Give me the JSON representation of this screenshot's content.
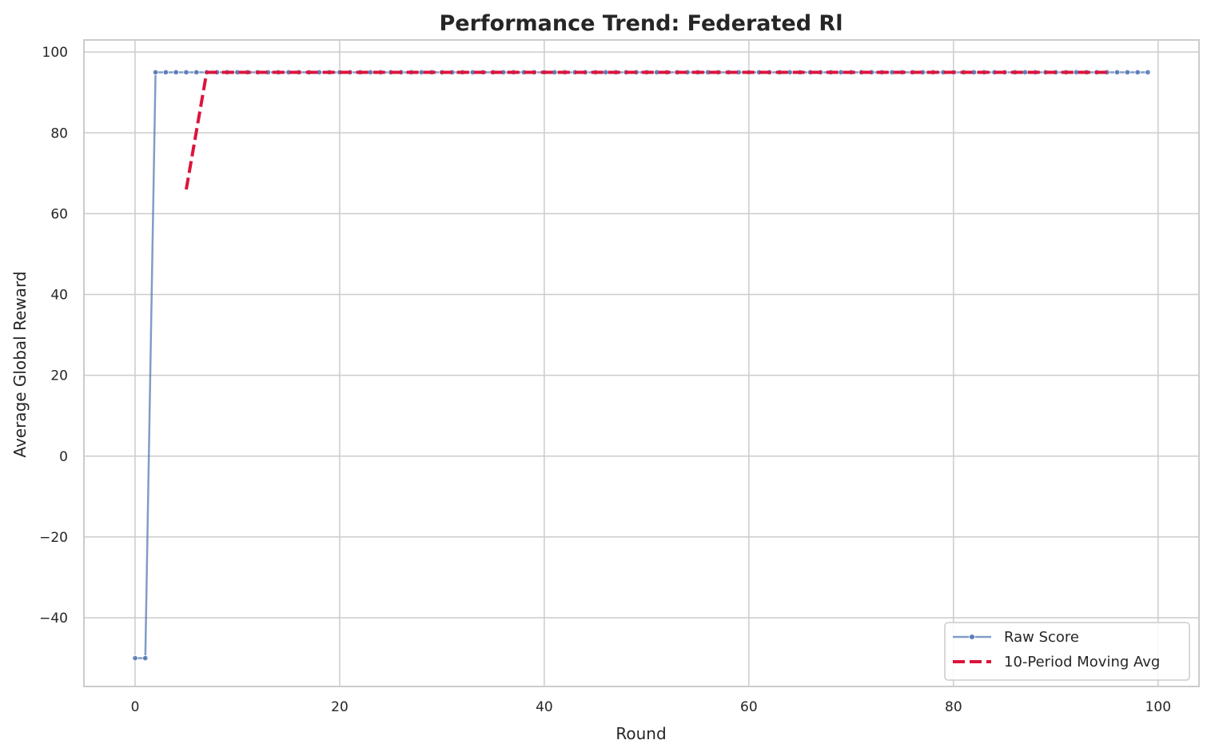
{
  "chart_data": {
    "type": "line",
    "title": "Performance Trend: Federated Rl",
    "xlabel": "Round",
    "ylabel": "Average Global Reward",
    "xlim": [
      -5,
      104
    ],
    "ylim": [
      -57,
      103
    ],
    "xticks": [
      0,
      20,
      40,
      60,
      80,
      100
    ],
    "yticks": [
      -40,
      -20,
      0,
      20,
      40,
      60,
      80,
      100
    ],
    "xtick_labels": [
      "0",
      "20",
      "40",
      "60",
      "80",
      "100"
    ],
    "ytick_labels": [
      "−40",
      "−20",
      "0",
      "20",
      "40",
      "60",
      "80",
      "100"
    ],
    "grid": true,
    "legend_position": "lower-right",
    "series": [
      {
        "name": "Raw Score",
        "color": "#4c72b0",
        "style": "solid-with-dot-markers",
        "points": [
          [
            0,
            -50
          ],
          [
            1,
            -50
          ],
          [
            2,
            95
          ],
          [
            3,
            95
          ],
          [
            4,
            95
          ],
          [
            5,
            95
          ],
          [
            6,
            95
          ],
          [
            7,
            95
          ],
          [
            8,
            95
          ],
          [
            9,
            95
          ],
          [
            10,
            95
          ],
          [
            11,
            95
          ],
          [
            12,
            95
          ],
          [
            13,
            95
          ],
          [
            14,
            95
          ],
          [
            15,
            95
          ],
          [
            16,
            95
          ],
          [
            17,
            95
          ],
          [
            18,
            95
          ],
          [
            19,
            95
          ],
          [
            20,
            95
          ],
          [
            21,
            95
          ],
          [
            22,
            95
          ],
          [
            23,
            95
          ],
          [
            24,
            95
          ],
          [
            25,
            95
          ],
          [
            26,
            95
          ],
          [
            27,
            95
          ],
          [
            28,
            95
          ],
          [
            29,
            95
          ],
          [
            30,
            95
          ],
          [
            31,
            95
          ],
          [
            32,
            95
          ],
          [
            33,
            95
          ],
          [
            34,
            95
          ],
          [
            35,
            95
          ],
          [
            36,
            95
          ],
          [
            37,
            95
          ],
          [
            38,
            95
          ],
          [
            39,
            95
          ],
          [
            40,
            95
          ],
          [
            41,
            95
          ],
          [
            42,
            95
          ],
          [
            43,
            95
          ],
          [
            44,
            95
          ],
          [
            45,
            95
          ],
          [
            46,
            95
          ],
          [
            47,
            95
          ],
          [
            48,
            95
          ],
          [
            49,
            95
          ],
          [
            50,
            95
          ],
          [
            51,
            95
          ],
          [
            52,
            95
          ],
          [
            53,
            95
          ],
          [
            54,
            95
          ],
          [
            55,
            95
          ],
          [
            56,
            95
          ],
          [
            57,
            95
          ],
          [
            58,
            95
          ],
          [
            59,
            95
          ],
          [
            60,
            95
          ],
          [
            61,
            95
          ],
          [
            62,
            95
          ],
          [
            63,
            95
          ],
          [
            64,
            95
          ],
          [
            65,
            95
          ],
          [
            66,
            95
          ],
          [
            67,
            95
          ],
          [
            68,
            95
          ],
          [
            69,
            95
          ],
          [
            70,
            95
          ],
          [
            71,
            95
          ],
          [
            72,
            95
          ],
          [
            73,
            95
          ],
          [
            74,
            95
          ],
          [
            75,
            95
          ],
          [
            76,
            95
          ],
          [
            77,
            95
          ],
          [
            78,
            95
          ],
          [
            79,
            95
          ],
          [
            80,
            95
          ],
          [
            81,
            95
          ],
          [
            82,
            95
          ],
          [
            83,
            95
          ],
          [
            84,
            95
          ],
          [
            85,
            95
          ],
          [
            86,
            95
          ],
          [
            87,
            95
          ],
          [
            88,
            95
          ],
          [
            89,
            95
          ],
          [
            90,
            95
          ],
          [
            91,
            95
          ],
          [
            92,
            95
          ],
          [
            93,
            95
          ],
          [
            94,
            95
          ],
          [
            95,
            95
          ],
          [
            96,
            95
          ],
          [
            97,
            95
          ],
          [
            98,
            95
          ],
          [
            99,
            95
          ]
        ]
      },
      {
        "name": "10-Period Moving Avg",
        "color": "#dc143c",
        "style": "dashed",
        "points": [
          [
            5,
            66
          ],
          [
            6,
            80.5
          ],
          [
            7,
            95
          ],
          [
            8,
            95
          ],
          [
            9,
            95
          ],
          [
            10,
            95
          ],
          [
            20,
            95
          ],
          [
            30,
            95
          ],
          [
            40,
            95
          ],
          [
            50,
            95
          ],
          [
            60,
            95
          ],
          [
            70,
            95
          ],
          [
            80,
            95
          ],
          [
            90,
            95
          ],
          [
            95,
            95
          ]
        ]
      }
    ]
  }
}
